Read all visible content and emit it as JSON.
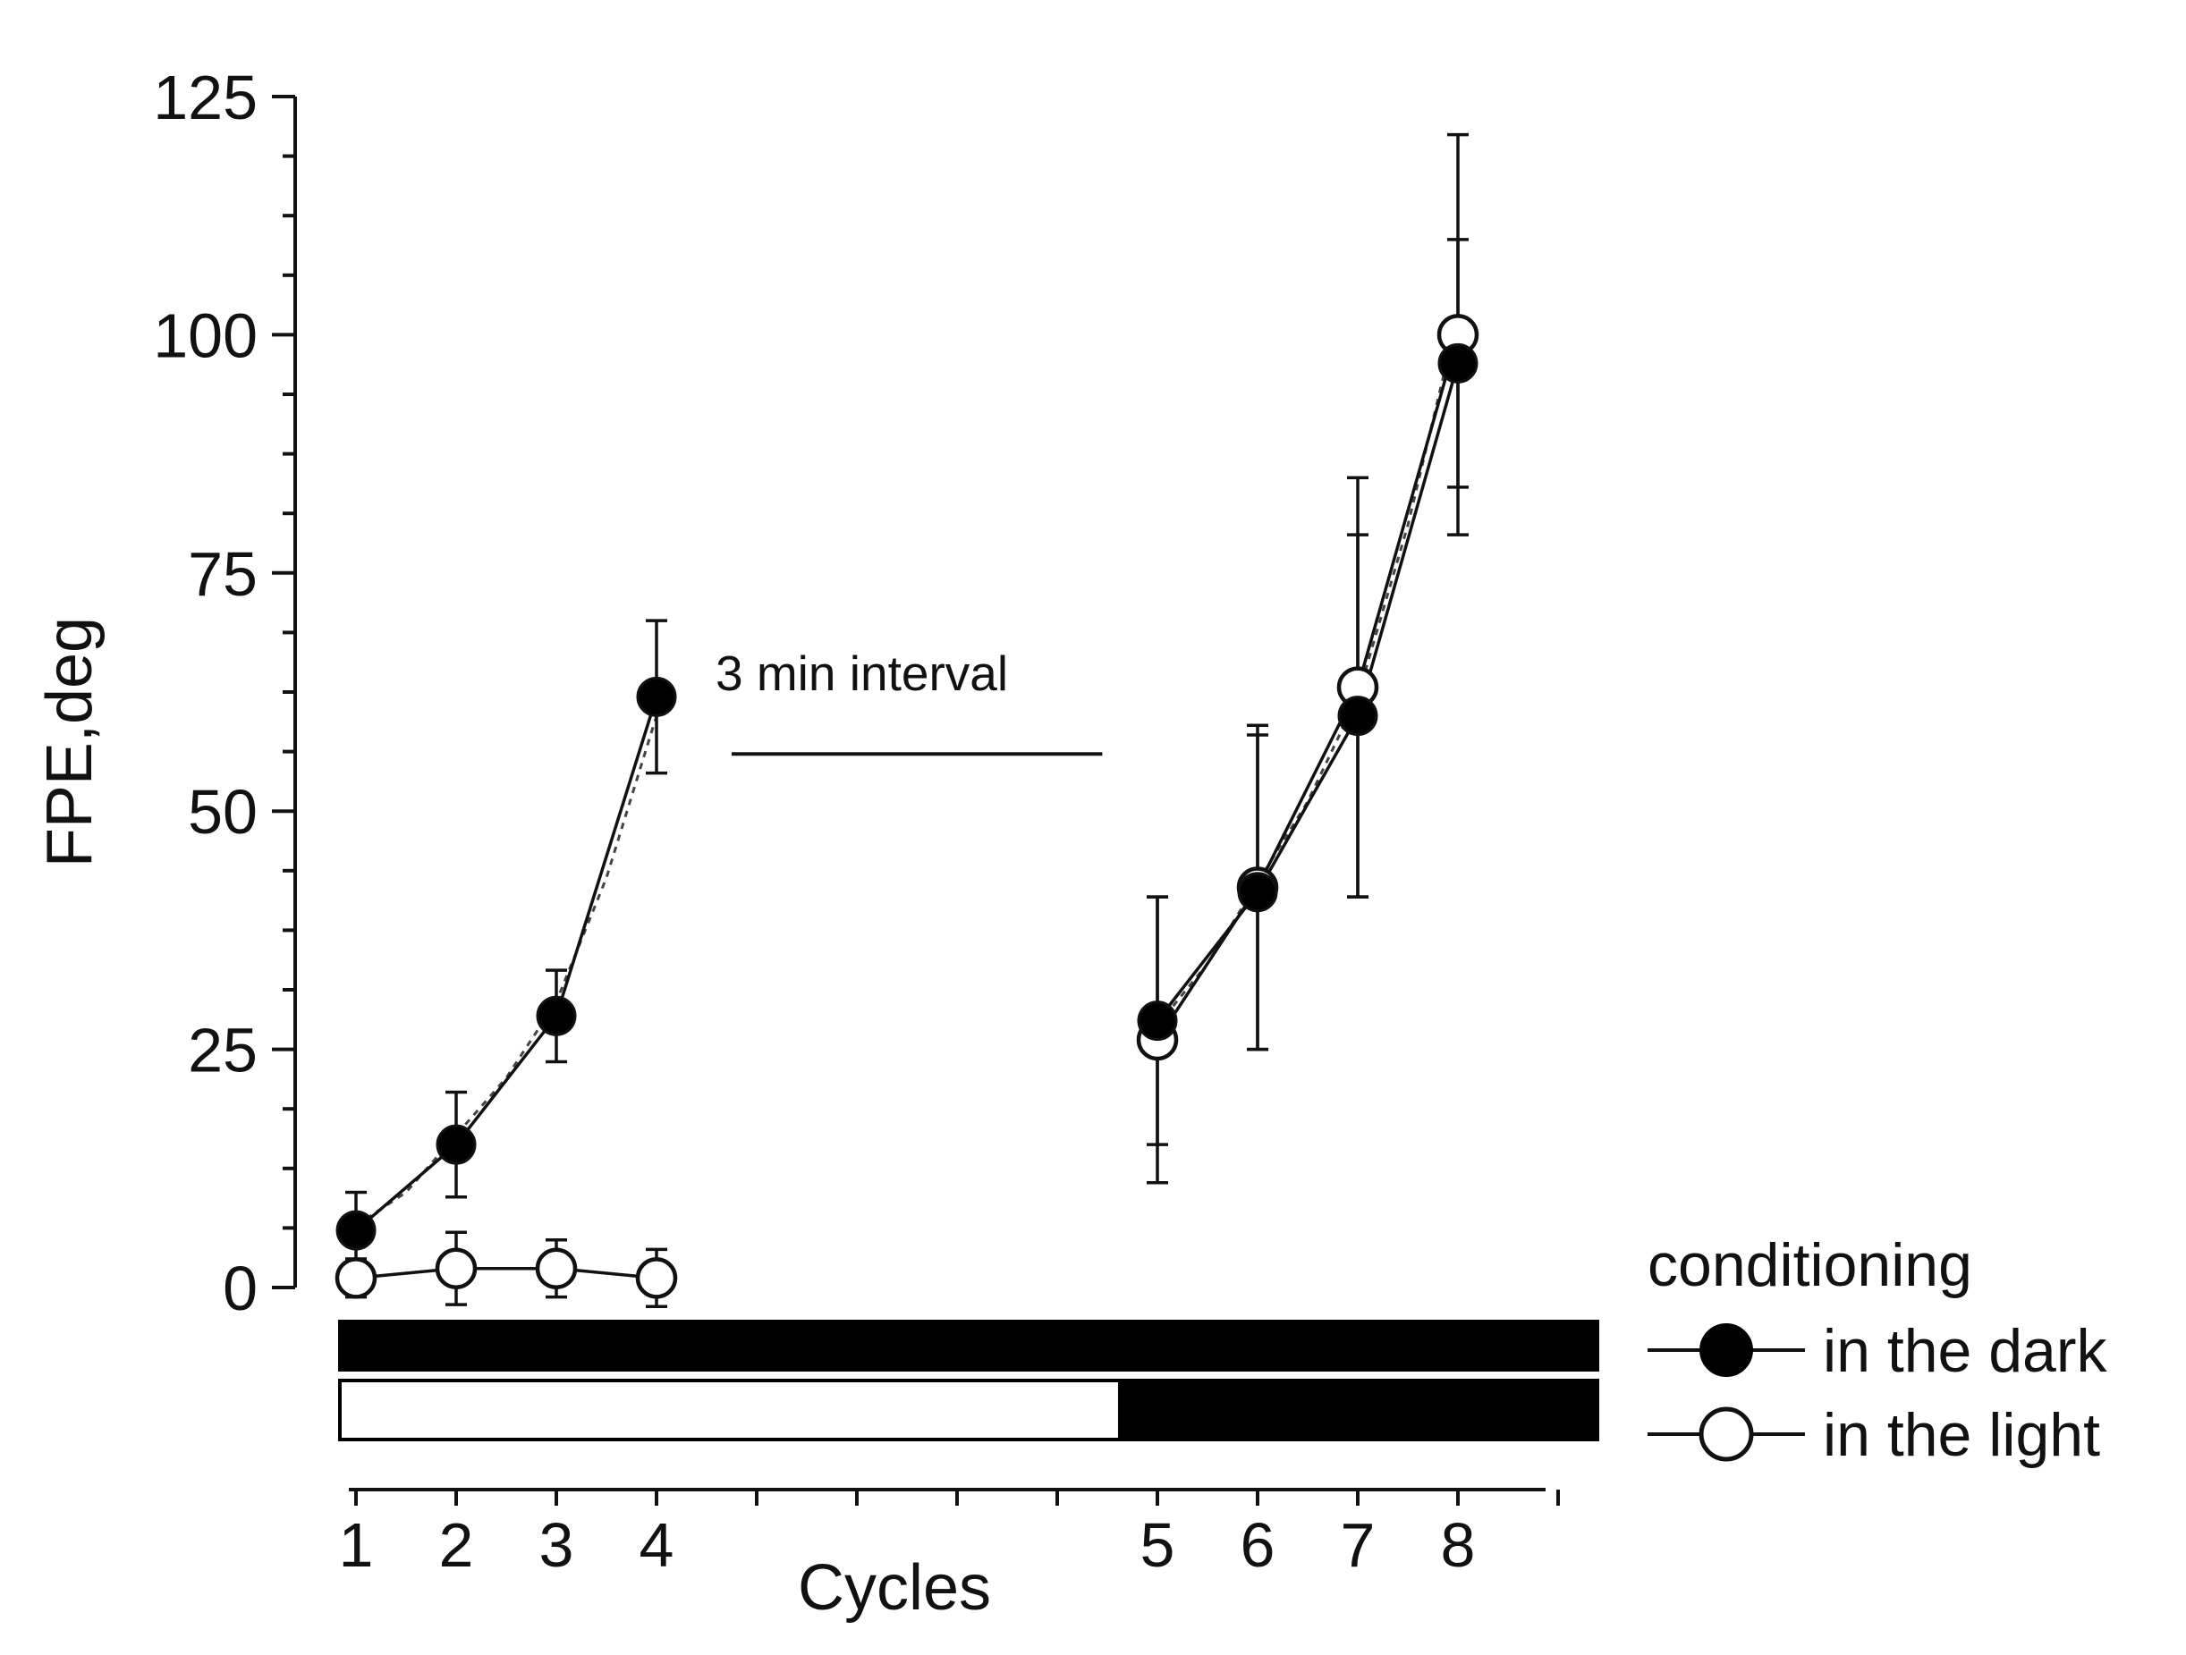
{
  "chart_data": {
    "type": "line",
    "ylabel": "FPE,deg",
    "xlabel": "Cycles",
    "ylim": [
      0,
      125
    ],
    "yticks": [
      0,
      25,
      50,
      75,
      100,
      125
    ],
    "y_minor_step": 6.25,
    "x_range": [
      0.85,
      12.7
    ],
    "x_tick_positions": [
      1,
      2,
      3,
      4,
      5,
      6,
      7,
      8,
      9,
      10,
      11,
      12,
      13
    ],
    "x_tick_labels": [
      {
        "x": 1,
        "label": "1"
      },
      {
        "x": 2,
        "label": "2"
      },
      {
        "x": 3,
        "label": "3"
      },
      {
        "x": 4,
        "label": "4"
      },
      {
        "x": 9,
        "label": "5"
      },
      {
        "x": 10,
        "label": "6"
      },
      {
        "x": 11,
        "label": "7"
      },
      {
        "x": 12,
        "label": "8"
      }
    ],
    "series": [
      {
        "name": "in the dark",
        "marker": "filled",
        "segments": [
          {
            "x": [
              1,
              2,
              3,
              4
            ],
            "y": [
              6,
              15,
              28.5,
              62
            ],
            "err": [
              4,
              5.5,
              4.8,
              8
            ]
          },
          {
            "x": [
              9,
              10,
              11,
              12
            ],
            "y": [
              28,
              41.5,
              60,
              97
            ],
            "err": [
              13,
              16.5,
              19,
              13
            ]
          }
        ]
      },
      {
        "name": "in the light",
        "marker": "open",
        "segments": [
          {
            "x": [
              1,
              2,
              3,
              4
            ],
            "y": [
              1,
              2,
              2,
              1
            ],
            "err": [
              2,
              3.8,
              3,
              3
            ]
          },
          {
            "x": [
              9,
              10,
              11,
              12
            ],
            "y": [
              26,
              42,
              63,
              100
            ],
            "err": [
              15,
              17,
              22,
              21
            ]
          }
        ]
      }
    ],
    "fit_curves": [
      {
        "x": [
          1,
          1.5,
          2,
          2.5,
          3,
          3.5,
          4
        ],
        "y": [
          6.5,
          10,
          16,
          22,
          30,
          43,
          60
        ]
      },
      {
        "x": [
          9,
          9.5,
          10,
          10.5,
          11,
          11.5,
          12
        ],
        "y": [
          27.5,
          34,
          42.5,
          51,
          62,
          80,
          102
        ]
      }
    ],
    "annotations": {
      "interval": {
        "label": "3 min  interval",
        "x_from": 4.75,
        "x_to": 8.45,
        "y": 56
      },
      "condition_bars": [
        {
          "name": "in the dark",
          "segments": [
            {
              "from": 0.85,
              "to": 12.7,
              "fill": "black"
            }
          ]
        },
        {
          "name": "in the light",
          "segments": [
            {
              "from": 0.85,
              "to": 8.2,
              "fill": "white"
            },
            {
              "from": 8.2,
              "to": 12.7,
              "fill": "black"
            }
          ]
        }
      ]
    },
    "legend": {
      "title": "conditioning",
      "position": "bottom-right",
      "items": [
        "in the dark",
        "in the light"
      ]
    }
  }
}
